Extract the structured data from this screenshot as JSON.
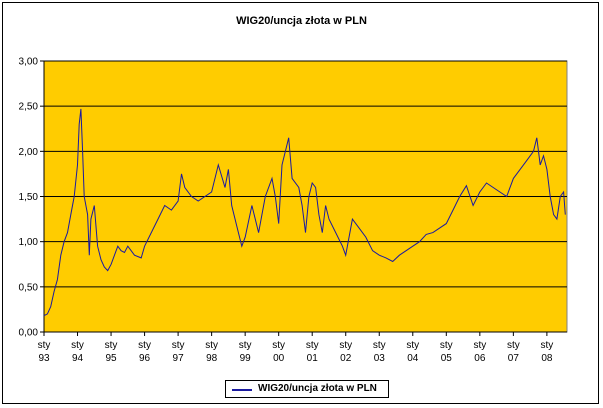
{
  "chart_data": {
    "type": "line",
    "title": "WIG20/uncja złota w PLN",
    "xlabel": "",
    "ylabel": "",
    "ylim": [
      0,
      3
    ],
    "yticks": [
      "0,00",
      "0,50",
      "1,00",
      "1,50",
      "2,00",
      "2,50",
      "3,00"
    ],
    "xticks": [
      {
        "line1": "sty",
        "line2": "93"
      },
      {
        "line1": "sty",
        "line2": "94"
      },
      {
        "line1": "sty",
        "line2": "95"
      },
      {
        "line1": "sty",
        "line2": "96"
      },
      {
        "line1": "sty",
        "line2": "97"
      },
      {
        "line1": "sty",
        "line2": "98"
      },
      {
        "line1": "sty",
        "line2": "99"
      },
      {
        "line1": "sty",
        "line2": "00"
      },
      {
        "line1": "sty",
        "line2": "01"
      },
      {
        "line1": "sty",
        "line2": "02"
      },
      {
        "line1": "sty",
        "line2": "03"
      },
      {
        "line1": "sty",
        "line2": "04"
      },
      {
        "line1": "sty",
        "line2": "05"
      },
      {
        "line1": "sty",
        "line2": "06"
      },
      {
        "line1": "sty",
        "line2": "07"
      },
      {
        "line1": "sty",
        "line2": "08"
      }
    ],
    "grid": "horizontal",
    "legend_position": "bottom",
    "colors": {
      "plot_bg": "#FFCC00",
      "line": "#1a1aa0",
      "grid": "#000000"
    },
    "series": [
      {
        "name": "WIG20/uncja złota w PLN",
        "x": [
          1993.0,
          1993.1,
          1993.2,
          1993.3,
          1993.4,
          1993.5,
          1993.6,
          1993.7,
          1993.8,
          1993.9,
          1994.0,
          1994.05,
          1994.1,
          1994.15,
          1994.2,
          1994.3,
          1994.35,
          1994.4,
          1994.5,
          1994.6,
          1994.7,
          1994.8,
          1994.9,
          1995.0,
          1995.2,
          1995.3,
          1995.4,
          1995.5,
          1995.7,
          1995.9,
          1996.0,
          1996.2,
          1996.4,
          1996.6,
          1996.8,
          1997.0,
          1997.1,
          1997.2,
          1997.4,
          1997.6,
          1997.8,
          1998.0,
          1998.2,
          1998.4,
          1998.5,
          1998.6,
          1998.8,
          1998.9,
          1999.0,
          1999.2,
          1999.4,
          1999.6,
          1999.8,
          1999.9,
          2000.0,
          2000.1,
          2000.2,
          2000.3,
          2000.4,
          2000.6,
          2000.7,
          2000.8,
          2000.9,
          2001.0,
          2001.1,
          2001.2,
          2001.3,
          2001.4,
          2001.5,
          2001.7,
          2001.9,
          2002.0,
          2002.2,
          2002.4,
          2002.6,
          2002.8,
          2003.0,
          2003.2,
          2003.4,
          2003.6,
          2003.8,
          2004.0,
          2004.2,
          2004.4,
          2004.6,
          2004.8,
          2005.0,
          2005.2,
          2005.4,
          2005.6,
          2005.8,
          2006.0,
          2006.2,
          2006.4,
          2006.6,
          2006.8,
          2007.0,
          2007.2,
          2007.4,
          2007.6,
          2007.7,
          2007.8,
          2007.9,
          2008.0,
          2008.1,
          2008.2,
          2008.3,
          2008.4,
          2008.5,
          2008.55
        ],
        "y": [
          0.18,
          0.2,
          0.28,
          0.45,
          0.58,
          0.85,
          1.0,
          1.1,
          1.3,
          1.5,
          1.85,
          2.3,
          2.47,
          2.0,
          1.5,
          1.3,
          0.85,
          1.25,
          1.4,
          0.95,
          0.8,
          0.72,
          0.68,
          0.75,
          0.95,
          0.9,
          0.88,
          0.95,
          0.85,
          0.82,
          0.95,
          1.1,
          1.25,
          1.4,
          1.35,
          1.45,
          1.75,
          1.6,
          1.5,
          1.45,
          1.5,
          1.55,
          1.85,
          1.6,
          1.8,
          1.4,
          1.1,
          0.95,
          1.05,
          1.4,
          1.1,
          1.5,
          1.7,
          1.5,
          1.2,
          1.85,
          2.0,
          2.15,
          1.7,
          1.6,
          1.4,
          1.1,
          1.5,
          1.65,
          1.6,
          1.3,
          1.1,
          1.4,
          1.25,
          1.1,
          0.95,
          0.85,
          1.25,
          1.15,
          1.05,
          0.9,
          0.85,
          0.82,
          0.78,
          0.85,
          0.9,
          0.95,
          1.0,
          1.08,
          1.1,
          1.15,
          1.2,
          1.35,
          1.5,
          1.62,
          1.4,
          1.55,
          1.65,
          1.6,
          1.55,
          1.5,
          1.7,
          1.8,
          1.9,
          2.0,
          2.15,
          1.85,
          1.95,
          1.8,
          1.5,
          1.3,
          1.25,
          1.5,
          1.55,
          1.3
        ]
      }
    ]
  }
}
